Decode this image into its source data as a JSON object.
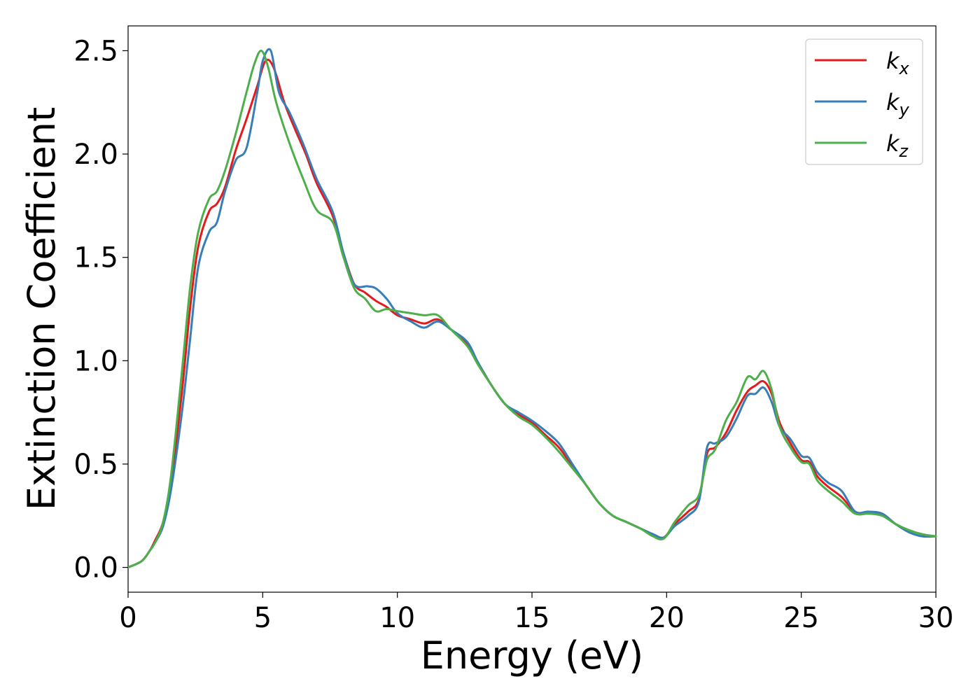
{
  "chart_data": {
    "type": "line",
    "title": "",
    "xlabel": "Energy (eV)",
    "ylabel": "Extinction Coefficient",
    "xlim": [
      0,
      30
    ],
    "ylim": [
      -0.12,
      2.62
    ],
    "xticks": [
      "0",
      "5",
      "10",
      "15",
      "20",
      "25",
      "30"
    ],
    "xtick_values": [
      0,
      5,
      10,
      15,
      20,
      25,
      30
    ],
    "yticks": [
      "0.0",
      "0.5",
      "1.0",
      "1.5",
      "2.0",
      "2.5"
    ],
    "ytick_values": [
      0,
      0.5,
      1.0,
      1.5,
      2.0,
      2.5
    ],
    "grid": false,
    "legend_position": "top-right",
    "series": [
      {
        "label": "k",
        "subscript": "x",
        "color": "#e41a1c",
        "x": [
          0,
          0.5,
          0.8,
          1.0,
          1.3,
          1.6,
          2.0,
          2.3,
          2.6,
          3.0,
          3.3,
          3.6,
          4.0,
          4.4,
          4.8,
          5.1,
          5.4,
          5.8,
          6.2,
          6.6,
          7.0,
          7.6,
          8.0,
          8.4,
          8.8,
          9.2,
          9.6,
          10.0,
          10.5,
          11.0,
          11.5,
          12.0,
          12.6,
          13.0,
          13.5,
          14.0,
          14.5,
          15.0,
          15.5,
          16.0,
          16.5,
          17.0,
          17.5,
          18.0,
          18.5,
          19.0,
          19.5,
          19.9,
          20.3,
          20.8,
          21.2,
          21.5,
          21.8,
          22.2,
          22.6,
          23.0,
          23.3,
          23.6,
          23.9,
          24.2,
          24.6,
          25.0,
          25.3,
          25.6,
          26.0,
          26.5,
          27.0,
          27.5,
          28.0,
          28.5,
          29.0,
          29.5,
          30.0
        ],
        "y": [
          0,
          0.03,
          0.08,
          0.13,
          0.22,
          0.42,
          0.85,
          1.25,
          1.55,
          1.72,
          1.76,
          1.84,
          2.02,
          2.17,
          2.33,
          2.45,
          2.42,
          2.25,
          2.12,
          2.0,
          1.86,
          1.7,
          1.52,
          1.37,
          1.33,
          1.29,
          1.26,
          1.22,
          1.2,
          1.18,
          1.2,
          1.15,
          1.08,
          0.99,
          0.88,
          0.79,
          0.74,
          0.7,
          0.64,
          0.58,
          0.49,
          0.4,
          0.31,
          0.25,
          0.22,
          0.19,
          0.16,
          0.145,
          0.21,
          0.27,
          0.33,
          0.55,
          0.58,
          0.65,
          0.76,
          0.85,
          0.88,
          0.9,
          0.84,
          0.7,
          0.6,
          0.52,
          0.51,
          0.44,
          0.39,
          0.34,
          0.27,
          0.26,
          0.26,
          0.21,
          0.18,
          0.16,
          0.15
        ]
      },
      {
        "label": "k",
        "subscript": "y",
        "color": "#377eb8",
        "x": [
          0,
          0.5,
          0.8,
          1.0,
          1.3,
          1.6,
          2.0,
          2.3,
          2.6,
          3.0,
          3.3,
          3.6,
          4.0,
          4.4,
          4.8,
          5.0,
          5.3,
          5.6,
          6.0,
          6.5,
          7.0,
          7.6,
          8.0,
          8.4,
          8.9,
          9.2,
          9.6,
          10.0,
          10.5,
          11.0,
          11.5,
          12.0,
          12.6,
          13.0,
          13.5,
          14.0,
          14.5,
          15.0,
          15.5,
          16.0,
          16.5,
          17.0,
          17.5,
          18.0,
          18.5,
          19.0,
          19.5,
          19.9,
          20.3,
          20.8,
          21.2,
          21.5,
          21.8,
          22.2,
          22.6,
          23.0,
          23.3,
          23.6,
          23.9,
          24.2,
          24.6,
          25.0,
          25.3,
          25.6,
          26.0,
          26.5,
          27.0,
          27.5,
          28.0,
          28.5,
          29.0,
          29.5,
          30.0
        ],
        "y": [
          0,
          0.03,
          0.08,
          0.12,
          0.2,
          0.38,
          0.75,
          1.1,
          1.45,
          1.62,
          1.67,
          1.82,
          1.97,
          2.03,
          2.3,
          2.45,
          2.5,
          2.3,
          2.2,
          2.05,
          1.88,
          1.72,
          1.52,
          1.37,
          1.36,
          1.35,
          1.3,
          1.23,
          1.19,
          1.16,
          1.19,
          1.15,
          1.09,
          0.99,
          0.88,
          0.79,
          0.75,
          0.71,
          0.66,
          0.6,
          0.5,
          0.4,
          0.31,
          0.25,
          0.22,
          0.19,
          0.16,
          0.145,
          0.2,
          0.25,
          0.32,
          0.58,
          0.6,
          0.63,
          0.72,
          0.83,
          0.84,
          0.87,
          0.8,
          0.68,
          0.62,
          0.54,
          0.53,
          0.46,
          0.41,
          0.37,
          0.27,
          0.27,
          0.26,
          0.21,
          0.17,
          0.15,
          0.15
        ]
      },
      {
        "label": "k",
        "subscript": "z",
        "color": "#4daf4a",
        "x": [
          0,
          0.5,
          0.8,
          1.0,
          1.3,
          1.6,
          2.0,
          2.3,
          2.6,
          3.0,
          3.3,
          3.6,
          4.0,
          4.4,
          4.7,
          4.95,
          5.2,
          5.5,
          6.0,
          6.5,
          7.0,
          7.6,
          8.0,
          8.4,
          8.8,
          9.2,
          9.6,
          10.0,
          10.5,
          11.0,
          11.5,
          12.0,
          12.6,
          13.0,
          13.5,
          14.0,
          14.5,
          15.0,
          15.5,
          16.0,
          16.5,
          17.0,
          17.5,
          18.0,
          18.5,
          19.0,
          19.5,
          19.9,
          20.3,
          20.8,
          21.2,
          21.5,
          21.8,
          22.2,
          22.6,
          23.0,
          23.3,
          23.6,
          23.9,
          24.2,
          24.6,
          25.0,
          25.3,
          25.6,
          26.0,
          26.5,
          27.0,
          27.5,
          28.0,
          28.5,
          29.0,
          29.5,
          30.0
        ],
        "y": [
          0,
          0.03,
          0.08,
          0.12,
          0.22,
          0.45,
          0.95,
          1.35,
          1.62,
          1.78,
          1.82,
          1.92,
          2.1,
          2.3,
          2.44,
          2.5,
          2.42,
          2.25,
          2.05,
          1.88,
          1.73,
          1.67,
          1.5,
          1.35,
          1.3,
          1.24,
          1.25,
          1.24,
          1.23,
          1.22,
          1.22,
          1.15,
          1.07,
          0.98,
          0.88,
          0.79,
          0.73,
          0.69,
          0.63,
          0.56,
          0.48,
          0.4,
          0.31,
          0.25,
          0.22,
          0.19,
          0.15,
          0.14,
          0.22,
          0.3,
          0.35,
          0.52,
          0.57,
          0.71,
          0.8,
          0.92,
          0.91,
          0.95,
          0.86,
          0.68,
          0.58,
          0.51,
          0.5,
          0.42,
          0.37,
          0.32,
          0.26,
          0.26,
          0.25,
          0.21,
          0.18,
          0.16,
          0.15
        ]
      }
    ]
  }
}
